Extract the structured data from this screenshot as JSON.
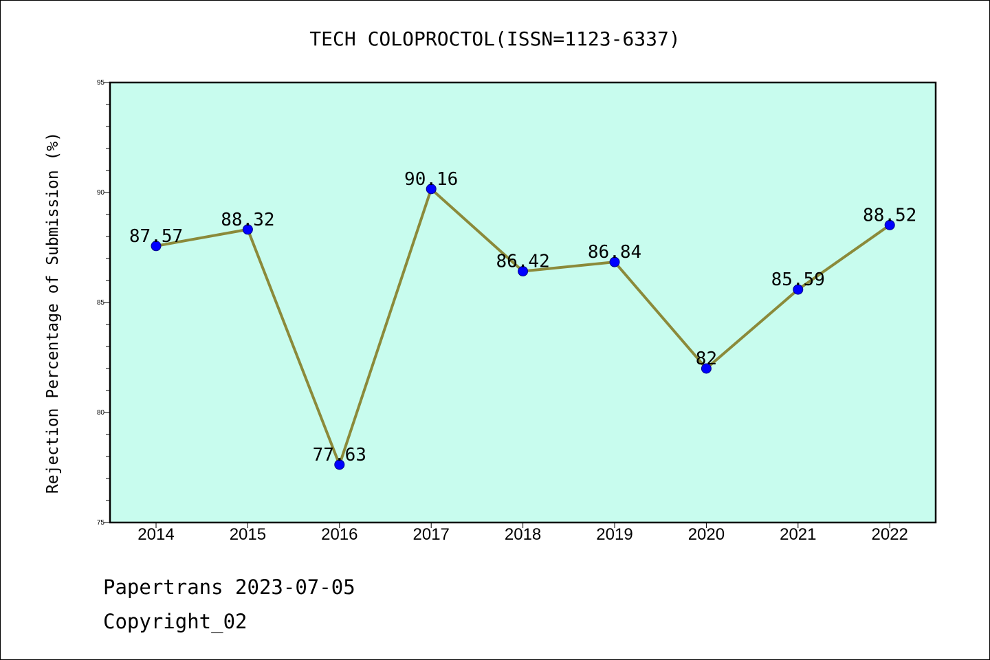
{
  "chart_data": {
    "type": "line",
    "title": "TECH COLOPROCTOL(ISSN=1123-6337)",
    "ylabel": "Rejection Percentage of Submission (%)",
    "xlabel": "",
    "categories": [
      "2014",
      "2015",
      "2016",
      "2017",
      "2018",
      "2019",
      "2020",
      "2021",
      "2022"
    ],
    "values": [
      87.57,
      88.32,
      77.63,
      90.16,
      86.42,
      86.84,
      82,
      85.59,
      88.52
    ],
    "data_labels": [
      "87.57",
      "88.32",
      "77.63",
      "90.16",
      "86.42",
      "86.84",
      "82",
      "85.59",
      "88.52"
    ],
    "ylim": [
      75,
      95
    ],
    "yticks": [
      75,
      80,
      85,
      90,
      95
    ],
    "grid": false,
    "legend": "none",
    "colors": {
      "plot_background": "#c8fcee",
      "line": "#8b8a3a",
      "marker": "#0000ff"
    }
  },
  "footer": {
    "line1": "Papertrans 2023-07-05",
    "line2": "Copyright_02"
  }
}
